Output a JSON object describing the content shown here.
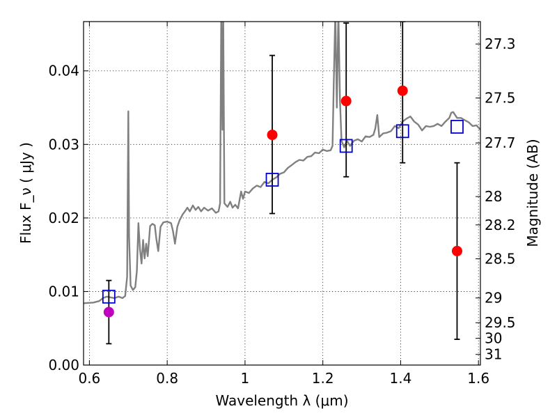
{
  "chart_data": {
    "type": "scatter",
    "title": "",
    "xlabel": "Wavelength λ (μm)",
    "ylabel": "Flux F_ν ( μJy )",
    "ylabel_right": "Magnitude (AB)",
    "xlim": [
      0.585,
      1.605
    ],
    "ylim": [
      0.0,
      0.0467
    ],
    "x_ticks": [
      0.6,
      0.8,
      1.0,
      1.2,
      1.4,
      1.6
    ],
    "x_tick_labels": [
      "0.6",
      "0.8",
      "1",
      "1.2",
      "1.4",
      "1.6"
    ],
    "y_ticks": [
      0.0,
      0.01,
      0.02,
      0.03,
      0.04
    ],
    "y_tick_labels": [
      "0.00",
      "0.01",
      "0.02",
      "0.03",
      "0.04"
    ],
    "right_ticks": [
      27.3,
      27.5,
      27.7,
      28,
      28.2,
      28.5,
      29,
      29.5,
      30,
      31
    ],
    "right_tick_labels": [
      "27.3",
      "27.5",
      "27.7",
      "28",
      "28.2",
      "28.5",
      "29",
      "29.5",
      "30",
      "31"
    ],
    "grid": true,
    "colors": {
      "spectrum": "#808080",
      "observed": "#ff0000",
      "observed_first": "#bf00bf",
      "model": "#0000cc",
      "errorbar": "#000000"
    },
    "series": [
      {
        "kind": "spectrum",
        "points": [
          [
            0.585,
            0.0084
          ],
          [
            0.61,
            0.0085
          ],
          [
            0.625,
            0.0087
          ],
          [
            0.635,
            0.0091
          ],
          [
            0.645,
            0.0093
          ],
          [
            0.655,
            0.0092
          ],
          [
            0.665,
            0.0091
          ],
          [
            0.675,
            0.0093
          ],
          [
            0.685,
            0.0091
          ],
          [
            0.692,
            0.0094
          ],
          [
            0.697,
            0.012
          ],
          [
            0.7,
            0.0345
          ],
          [
            0.702,
            0.0175
          ],
          [
            0.706,
            0.0108
          ],
          [
            0.712,
            0.0102
          ],
          [
            0.718,
            0.0106
          ],
          [
            0.722,
            0.0128
          ],
          [
            0.726,
            0.0193
          ],
          [
            0.73,
            0.0158
          ],
          [
            0.734,
            0.0138
          ],
          [
            0.738,
            0.017
          ],
          [
            0.742,
            0.0145
          ],
          [
            0.746,
            0.0165
          ],
          [
            0.75,
            0.0148
          ],
          [
            0.756,
            0.0189
          ],
          [
            0.762,
            0.0192
          ],
          [
            0.768,
            0.019
          ],
          [
            0.772,
            0.0172
          ],
          [
            0.777,
            0.0155
          ],
          [
            0.783,
            0.0188
          ],
          [
            0.79,
            0.0194
          ],
          [
            0.8,
            0.0195
          ],
          [
            0.81,
            0.0193
          ],
          [
            0.815,
            0.0182
          ],
          [
            0.82,
            0.0165
          ],
          [
            0.826,
            0.0188
          ],
          [
            0.832,
            0.0197
          ],
          [
            0.84,
            0.0205
          ],
          [
            0.847,
            0.021
          ],
          [
            0.852,
            0.0214
          ],
          [
            0.858,
            0.0209
          ],
          [
            0.866,
            0.0217
          ],
          [
            0.873,
            0.0211
          ],
          [
            0.88,
            0.0215
          ],
          [
            0.887,
            0.0209
          ],
          [
            0.895,
            0.0214
          ],
          [
            0.905,
            0.021
          ],
          [
            0.915,
            0.0213
          ],
          [
            0.925,
            0.0207
          ],
          [
            0.932,
            0.0209
          ],
          [
            0.936,
            0.022
          ],
          [
            0.939,
            0.048
          ],
          [
            0.942,
            0.032
          ],
          [
            0.944,
            0.048
          ],
          [
            0.947,
            0.022
          ],
          [
            0.955,
            0.0215
          ],
          [
            0.962,
            0.0222
          ],
          [
            0.968,
            0.0214
          ],
          [
            0.975,
            0.0218
          ],
          [
            0.982,
            0.0213
          ],
          [
            0.99,
            0.0236
          ],
          [
            0.995,
            0.0226
          ],
          [
            1.0,
            0.0236
          ],
          [
            1.01,
            0.0234
          ],
          [
            1.02,
            0.024
          ],
          [
            1.03,
            0.0244
          ],
          [
            1.04,
            0.0242
          ],
          [
            1.05,
            0.0249
          ],
          [
            1.06,
            0.0247
          ],
          [
            1.07,
            0.0252
          ],
          [
            1.08,
            0.0255
          ],
          [
            1.09,
            0.026
          ],
          [
            1.1,
            0.0262
          ],
          [
            1.11,
            0.0268
          ],
          [
            1.12,
            0.0272
          ],
          [
            1.13,
            0.0276
          ],
          [
            1.14,
            0.0279
          ],
          [
            1.15,
            0.0278
          ],
          [
            1.16,
            0.0283
          ],
          [
            1.17,
            0.0284
          ],
          [
            1.18,
            0.0289
          ],
          [
            1.19,
            0.0288
          ],
          [
            1.2,
            0.0293
          ],
          [
            1.21,
            0.0291
          ],
          [
            1.22,
            0.0292
          ],
          [
            1.225,
            0.0298
          ],
          [
            1.228,
            0.038
          ],
          [
            1.232,
            0.048
          ],
          [
            1.236,
            0.035
          ],
          [
            1.24,
            0.048
          ],
          [
            1.244,
            0.036
          ],
          [
            1.248,
            0.0305
          ],
          [
            1.255,
            0.0296
          ],
          [
            1.262,
            0.0305
          ],
          [
            1.27,
            0.0298
          ],
          [
            1.28,
            0.0305
          ],
          [
            1.29,
            0.0307
          ],
          [
            1.3,
            0.0304
          ],
          [
            1.31,
            0.0311
          ],
          [
            1.32,
            0.031
          ],
          [
            1.33,
            0.0313
          ],
          [
            1.335,
            0.0322
          ],
          [
            1.34,
            0.034
          ],
          [
            1.345,
            0.031
          ],
          [
            1.355,
            0.0315
          ],
          [
            1.365,
            0.0316
          ],
          [
            1.375,
            0.0318
          ],
          [
            1.385,
            0.0325
          ],
          [
            1.395,
            0.0322
          ],
          [
            1.405,
            0.0331
          ],
          [
            1.415,
            0.0335
          ],
          [
            1.425,
            0.0338
          ],
          [
            1.435,
            0.0331
          ],
          [
            1.445,
            0.0327
          ],
          [
            1.455,
            0.0319
          ],
          [
            1.465,
            0.0325
          ],
          [
            1.475,
            0.0324
          ],
          [
            1.485,
            0.0325
          ],
          [
            1.495,
            0.0328
          ],
          [
            1.505,
            0.0325
          ],
          [
            1.515,
            0.0331
          ],
          [
            1.525,
            0.0336
          ],
          [
            1.53,
            0.0343
          ],
          [
            1.535,
            0.0344
          ],
          [
            1.545,
            0.0336
          ],
          [
            1.555,
            0.0336
          ],
          [
            1.565,
            0.0333
          ],
          [
            1.575,
            0.033
          ],
          [
            1.585,
            0.0325
          ],
          [
            1.595,
            0.0326
          ],
          [
            1.605,
            0.032
          ]
        ]
      },
      {
        "kind": "model",
        "points": [
          [
            0.65,
            0.0093
          ],
          [
            1.07,
            0.0252
          ],
          [
            1.26,
            0.0298
          ],
          [
            1.405,
            0.0318
          ],
          [
            1.545,
            0.0324
          ]
        ]
      },
      {
        "kind": "observed",
        "points": [
          {
            "x": 0.65,
            "y": 0.0072,
            "lo": 0.0029,
            "hi": 0.0115
          },
          {
            "x": 1.07,
            "y": 0.0313,
            "lo": 0.0206,
            "hi": 0.0421
          },
          {
            "x": 1.26,
            "y": 0.0359,
            "lo": 0.0256,
            "hi": 0.0465
          },
          {
            "x": 1.405,
            "y": 0.0373,
            "lo": 0.0275,
            "hi": 0.0467
          },
          {
            "x": 1.545,
            "y": 0.0155,
            "lo": 0.0035,
            "hi": 0.0275
          }
        ]
      }
    ]
  }
}
